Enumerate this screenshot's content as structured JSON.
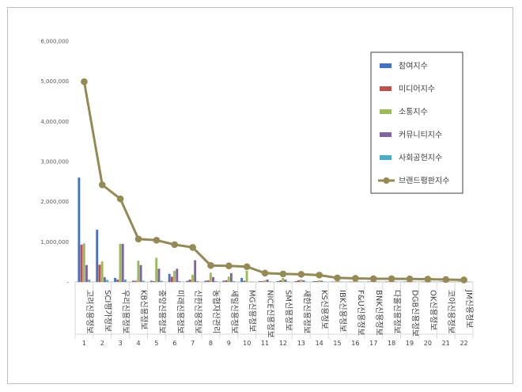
{
  "chart_data": {
    "type": "bar",
    "categories": [
      "고려신용정보",
      "SCI평가정보",
      "우리신용정보",
      "KB신용정보",
      "중앙신용정보",
      "미래신용정보",
      "신한신용정보",
      "농협자산관리",
      "세일신용정보",
      "MG신용정보",
      "NICE신용정보",
      "SM신용정보",
      "새한신용정보",
      "KS신용정보",
      "IBK신용정보",
      "F&U신용정보",
      "BNK신용정보",
      "다올신용정보",
      "DGB신용정보",
      "OK신용정보",
      "코아신용정보",
      "JM신용정보"
    ],
    "category_numbers": [
      "1",
      "2",
      "3",
      "4",
      "5",
      "6",
      "7",
      "8",
      "9",
      "10",
      "11",
      "12",
      "13",
      "14",
      "15",
      "16",
      "17",
      "18",
      "19",
      "20",
      "21",
      "22"
    ],
    "ylim": [
      0,
      6000000
    ],
    "yticks": [
      "-",
      "1,000,000",
      "2,000,000",
      "3,000,000",
      "4,000,000",
      "5,000,000",
      "6,000,000"
    ],
    "series": [
      {
        "name": "참여지수",
        "color": "#4472c4",
        "kind": "bar",
        "values": [
          2600000,
          1300000,
          100000,
          30000,
          30000,
          200000,
          30000,
          30000,
          30000,
          100000,
          20000,
          20000,
          20000,
          20000,
          10000,
          10000,
          10000,
          10000,
          10000,
          10000,
          10000,
          10000
        ]
      },
      {
        "name": "미디어지수",
        "color": "#c0504d",
        "kind": "bar",
        "values": [
          930000,
          430000,
          60000,
          30000,
          20000,
          130000,
          60000,
          40000,
          40000,
          30000,
          20000,
          40000,
          40000,
          20000,
          10000,
          10000,
          10000,
          10000,
          10000,
          10000,
          10000,
          10000
        ]
      },
      {
        "name": "소통지수",
        "color": "#9bbb59",
        "kind": "bar",
        "values": [
          960000,
          510000,
          950000,
          530000,
          600000,
          280000,
          180000,
          230000,
          130000,
          280000,
          40000,
          100000,
          60000,
          40000,
          20000,
          20000,
          20000,
          20000,
          20000,
          20000,
          20000,
          20000
        ]
      },
      {
        "name": "커뮤니티지수",
        "color": "#8064a2",
        "kind": "bar",
        "values": [
          420000,
          120000,
          950000,
          420000,
          330000,
          330000,
          540000,
          120000,
          220000,
          0,
          60000,
          60000,
          40000,
          30000,
          10000,
          10000,
          10000,
          10000,
          10000,
          10000,
          10000,
          10000
        ]
      },
      {
        "name": "사회공헌지수",
        "color": "#4bacc6",
        "kind": "bar",
        "values": [
          60000,
          50000,
          60000,
          30000,
          30000,
          20000,
          20000,
          20000,
          20000,
          10000,
          10000,
          10000,
          10000,
          10000,
          5000,
          5000,
          5000,
          5000,
          5000,
          5000,
          5000,
          5000
        ]
      },
      {
        "name": "브랜드평판지수",
        "color": "#948a54",
        "kind": "line",
        "values": [
          4990000,
          2420000,
          2070000,
          1070000,
          1040000,
          930000,
          860000,
          410000,
          400000,
          380000,
          220000,
          200000,
          190000,
          170000,
          100000,
          90000,
          80000,
          80000,
          75000,
          70000,
          60000,
          50000
        ]
      }
    ],
    "legend_position": "right"
  }
}
